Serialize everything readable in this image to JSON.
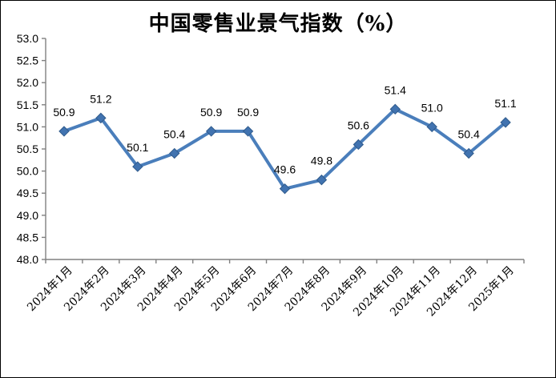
{
  "chart_data": {
    "type": "line",
    "title": "中国零售业景气指数（%）",
    "categories": [
      "2024年1月",
      "2024年2月",
      "2024年3月",
      "2024年4月",
      "2024年5月",
      "2024年6月",
      "2024年7月",
      "2024年8月",
      "2024年9月",
      "2024年10月",
      "2024年11月",
      "2024年12月",
      "2025年1月"
    ],
    "values": [
      50.9,
      51.2,
      50.1,
      50.4,
      50.9,
      50.9,
      49.6,
      49.8,
      50.6,
      51.4,
      51.0,
      50.4,
      51.1
    ],
    "data_labels": [
      "50.9",
      "51.2",
      "50.1",
      "50.4",
      "50.9",
      "50.9",
      "49.6",
      "49.8",
      "50.6",
      "51.4",
      "51.0",
      "50.4",
      "51.1"
    ],
    "ytick_labels": [
      "53.0",
      "52.5",
      "52.0",
      "51.5",
      "51.0",
      "50.5",
      "50.0",
      "49.5",
      "49.0",
      "48.5",
      "48.0"
    ],
    "ylim": [
      48.0,
      53.0
    ],
    "ytick_step": 0.5,
    "xlabel": "",
    "ylabel": "",
    "grid": false,
    "legend": false,
    "marker": "diamond",
    "line_color": "#4A7EBB",
    "marker_color": "#4173B0",
    "marker_border_color": "#2F5A8B",
    "axis_color": "#808080",
    "text_color": "#000000"
  }
}
